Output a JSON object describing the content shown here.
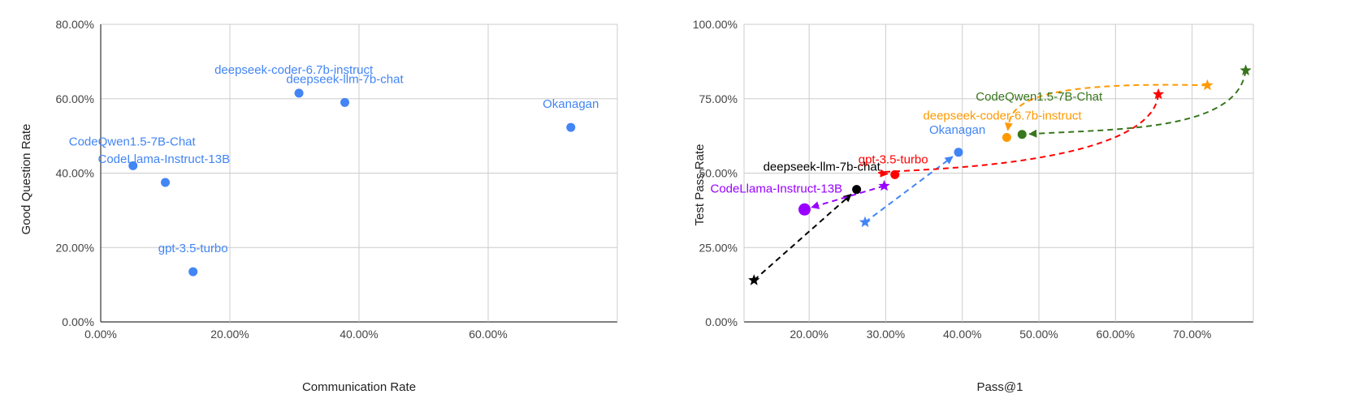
{
  "chart_data": [
    {
      "type": "scatter",
      "xlabel": "Communication Rate",
      "ylabel": "Good Question Rate",
      "xlim": [
        0,
        0.8
      ],
      "ylim": [
        0,
        0.8
      ],
      "xticks": [
        0,
        0.2,
        0.4,
        0.6
      ],
      "xtick_labels": [
        "0.00%",
        "20.00%",
        "40.00%",
        "60.00%"
      ],
      "yticks": [
        0,
        0.2,
        0.4,
        0.6,
        0.8
      ],
      "ytick_labels": [
        "0.00%",
        "20.00%",
        "40.00%",
        "60.00%",
        "80.00%"
      ],
      "grid": true,
      "color": "#4285f4",
      "points": [
        {
          "label": "CodeQwen1.5-7B-Chat",
          "x": 0.05,
          "y": 0.42
        },
        {
          "label": "CodeLlama-Instruct-13B",
          "x": 0.1,
          "y": 0.375
        },
        {
          "label": "gpt-3.5-turbo",
          "x": 0.143,
          "y": 0.135
        },
        {
          "label": "deepseek-coder-6.7b-instruct",
          "x": 0.307,
          "y": 0.615
        },
        {
          "label": "deepseek-llm-7b-chat",
          "x": 0.378,
          "y": 0.59
        },
        {
          "label": "Okanagan",
          "x": 0.728,
          "y": 0.523
        }
      ]
    },
    {
      "type": "scatter",
      "xlabel": "Pass@1",
      "ylabel": "Test Pass Rate",
      "xlim": [
        0.115,
        0.78
      ],
      "ylim": [
        0,
        1.0
      ],
      "xticks": [
        0.2,
        0.3,
        0.4,
        0.5,
        0.6,
        0.7
      ],
      "xtick_labels": [
        "20.00%",
        "30.00%",
        "40.00%",
        "50.00%",
        "60.00%",
        "70.00%"
      ],
      "yticks": [
        0,
        0.25,
        0.5,
        0.75,
        1.0
      ],
      "ytick_labels": [
        "0.00%",
        "25.00%",
        "50.00%",
        "75.00%",
        "100.00%"
      ],
      "grid": true,
      "series": [
        {
          "name": "deepseek-llm-7b-chat",
          "color": "#000000",
          "from": {
            "x": 0.128,
            "y": 0.14
          },
          "to": {
            "x": 0.262,
            "y": 0.445
          }
        },
        {
          "name": "CodeLlama-Instruct-13B",
          "color": "#9900ff",
          "from": {
            "x": 0.298,
            "y": 0.457
          },
          "to": {
            "x": 0.194,
            "y": 0.378
          }
        },
        {
          "name": "Okanagan",
          "color": "#4285f4",
          "from": {
            "x": 0.273,
            "y": 0.335
          },
          "to": {
            "x": 0.395,
            "y": 0.57
          }
        },
        {
          "name": "gpt-3.5-turbo",
          "color": "#ff0000",
          "from": {
            "x": 0.656,
            "y": 0.765
          },
          "to": {
            "x": 0.312,
            "y": 0.495
          }
        },
        {
          "name": "deepseek-coder-6.7b-instruct",
          "color": "#ff9900",
          "from": {
            "x": 0.72,
            "y": 0.795
          },
          "to": {
            "x": 0.458,
            "y": 0.62
          }
        },
        {
          "name": "CodeQwen1.5-7B-Chat",
          "color": "#38761d",
          "from": {
            "x": 0.77,
            "y": 0.845
          },
          "to": {
            "x": 0.478,
            "y": 0.63
          }
        }
      ]
    }
  ]
}
